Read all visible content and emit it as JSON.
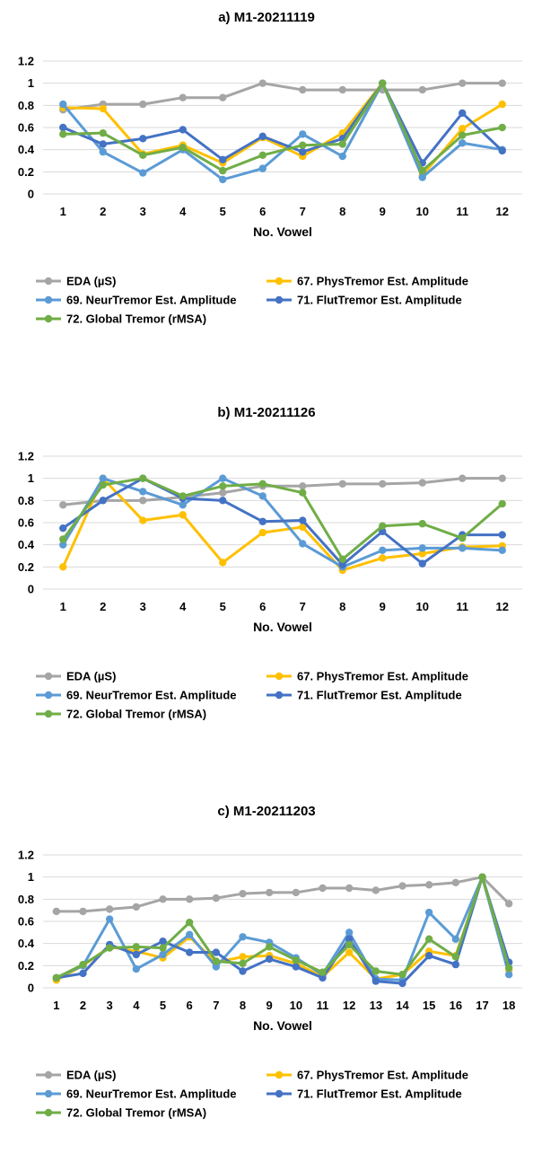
{
  "colors": {
    "eda": "#A5A5A5",
    "phys": "#FFC000",
    "neur": "#5B9BD5",
    "flut": "#4472C4",
    "global": "#70AD47",
    "gridline": "#D9D9D9"
  },
  "chart_data": [
    {
      "type": "line",
      "title": "a) M1-20211119",
      "xlabel": "No. Vowel",
      "ylabel": "",
      "x": [
        1,
        2,
        3,
        4,
        5,
        6,
        7,
        8,
        9,
        10,
        11,
        12
      ],
      "ylim": [
        0,
        1.2
      ],
      "yticks": [
        "0",
        "0.2",
        "0.4",
        "0.6",
        "0.8",
        "1",
        "1.2"
      ],
      "grid": true,
      "legend_position": "bottom",
      "series": [
        {
          "name": "EDA (µS)",
          "values": [
            0.76,
            0.81,
            0.81,
            0.87,
            0.87,
            1.0,
            0.94,
            0.94,
            0.94,
            0.94,
            1.0,
            1.0
          ]
        },
        {
          "name": "67. PhysTremor Est. Amplitude",
          "values": [
            0.78,
            0.77,
            0.36,
            0.44,
            0.28,
            0.51,
            0.34,
            0.55,
            1.0,
            0.17,
            0.59,
            0.81
          ]
        },
        {
          "name": "69. NeurTremor Est. Amplitude",
          "values": [
            0.81,
            0.38,
            0.19,
            0.4,
            0.13,
            0.23,
            0.54,
            0.34,
            1.0,
            0.15,
            0.46,
            0.4
          ]
        },
        {
          "name": "71. FlutTremor Est. Amplitude",
          "values": [
            0.6,
            0.45,
            0.5,
            0.58,
            0.31,
            0.52,
            0.38,
            0.5,
            1.0,
            0.28,
            0.73,
            0.39
          ]
        },
        {
          "name": "72. Global Tremor (rMSA)",
          "values": [
            0.54,
            0.55,
            0.35,
            0.42,
            0.21,
            0.35,
            0.44,
            0.45,
            1.0,
            0.21,
            0.53,
            0.6
          ]
        }
      ]
    },
    {
      "type": "line",
      "title": "b) M1-20211126",
      "xlabel": "No. Vowel",
      "ylabel": "",
      "x": [
        1,
        2,
        3,
        4,
        5,
        6,
        7,
        8,
        9,
        10,
        11,
        12
      ],
      "ylim": [
        0,
        1.2
      ],
      "yticks": [
        "0",
        "0.2",
        "0.4",
        "0.6",
        "0.8",
        "1",
        "1.2"
      ],
      "grid": true,
      "legend_position": "bottom",
      "series": [
        {
          "name": "EDA (µS)",
          "values": [
            0.76,
            0.8,
            0.8,
            0.83,
            0.87,
            0.93,
            0.93,
            0.95,
            0.95,
            0.96,
            1.0,
            1.0
          ]
        },
        {
          "name": "67. PhysTremor Est. Amplitude",
          "values": [
            0.2,
            1.0,
            0.62,
            0.67,
            0.24,
            0.51,
            0.56,
            0.17,
            0.28,
            0.32,
            0.38,
            0.39
          ]
        },
        {
          "name": "69. NeurTremor Est. Amplitude",
          "values": [
            0.4,
            1.0,
            0.88,
            0.76,
            1.0,
            0.84,
            0.41,
            0.2,
            0.35,
            0.37,
            0.37,
            0.35
          ]
        },
        {
          "name": "71. FlutTremor Est. Amplitude",
          "values": [
            0.55,
            0.8,
            1.0,
            0.82,
            0.8,
            0.61,
            0.62,
            0.22,
            0.52,
            0.23,
            0.49,
            0.49
          ]
        },
        {
          "name": "72. Global Tremor (rMSA)",
          "values": [
            0.45,
            0.94,
            1.0,
            0.84,
            0.93,
            0.95,
            0.87,
            0.27,
            0.57,
            0.59,
            0.46,
            0.77
          ]
        }
      ]
    },
    {
      "type": "line",
      "title": "c) M1-20211203",
      "xlabel": "No. Vowel",
      "ylabel": "",
      "x": [
        1,
        2,
        3,
        4,
        5,
        6,
        7,
        8,
        9,
        10,
        11,
        12,
        13,
        14,
        15,
        16,
        17,
        18
      ],
      "ylim": [
        0,
        1.2
      ],
      "yticks": [
        "0",
        "0.2",
        "0.4",
        "0.6",
        "0.8",
        "1",
        "1.2"
      ],
      "grid": true,
      "legend_position": "bottom",
      "series": [
        {
          "name": "EDA (µS)",
          "values": [
            0.69,
            0.69,
            0.71,
            0.73,
            0.8,
            0.8,
            0.81,
            0.85,
            0.86,
            0.86,
            0.9,
            0.9,
            0.88,
            0.92,
            0.93,
            0.95,
            1.0,
            0.76
          ]
        },
        {
          "name": "67. PhysTremor Est. Amplitude",
          "values": [
            0.07,
            0.2,
            0.37,
            0.33,
            0.27,
            0.46,
            0.23,
            0.28,
            0.29,
            0.22,
            0.1,
            0.32,
            0.08,
            0.12,
            0.33,
            0.29,
            1.0,
            0.16
          ]
        },
        {
          "name": "69. NeurTremor Est. Amplitude",
          "values": [
            0.09,
            0.2,
            0.62,
            0.17,
            0.3,
            0.48,
            0.19,
            0.46,
            0.41,
            0.27,
            0.12,
            0.5,
            0.08,
            0.07,
            0.68,
            0.44,
            1.0,
            0.12
          ]
        },
        {
          "name": "71. FlutTremor Est. Amplitude",
          "values": [
            0.09,
            0.13,
            0.39,
            0.3,
            0.42,
            0.32,
            0.32,
            0.15,
            0.26,
            0.19,
            0.09,
            0.44,
            0.06,
            0.04,
            0.29,
            0.21,
            1.0,
            0.23
          ]
        },
        {
          "name": "72. Global Tremor (rMSA)",
          "values": [
            0.09,
            0.21,
            0.36,
            0.37,
            0.36,
            0.59,
            0.24,
            0.22,
            0.37,
            0.25,
            0.14,
            0.39,
            0.15,
            0.12,
            0.44,
            0.28,
            1.0,
            0.18
          ]
        }
      ]
    }
  ]
}
